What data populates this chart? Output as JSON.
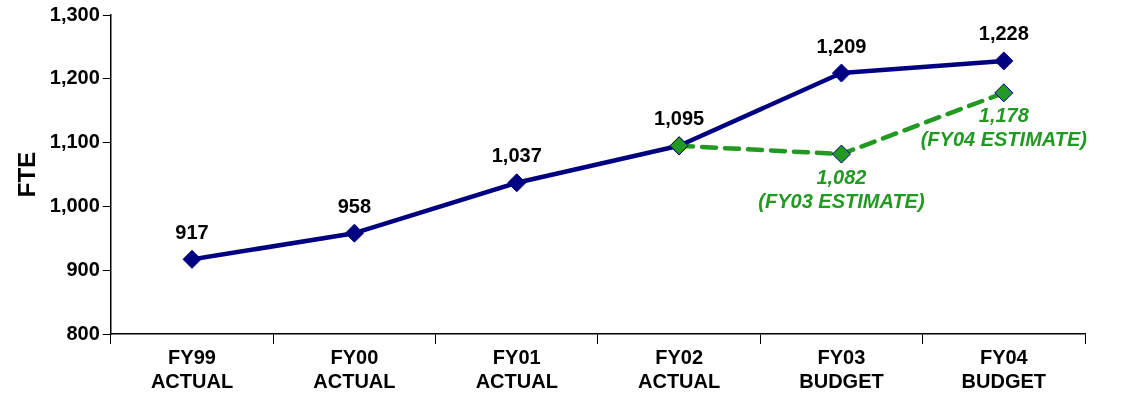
{
  "chart_data": {
    "type": "line",
    "ylabel": "FTE",
    "categories": [
      "FY99 ACTUAL",
      "FY00 ACTUAL",
      "FY01 ACTUAL",
      "FY02 ACTUAL",
      "FY03 BUDGET",
      "FY04 BUDGET"
    ],
    "series": [
      {
        "color": "#000080",
        "values": [
          917,
          958,
          1037,
          1095,
          1209,
          1228
        ],
        "value_labels": [
          "917",
          "958",
          "1,037",
          "1,095",
          "1,209",
          "1,228"
        ]
      },
      {
        "color": "#229922",
        "line_style": "dashed",
        "values": [
          null,
          null,
          null,
          1095,
          1082,
          1178
        ],
        "value_labels": [
          null,
          null,
          null,
          null,
          "1,082",
          "1,178"
        ]
      }
    ],
    "annotations": [
      {
        "text": "(FY03 ESTIMATE)",
        "x": "FY03 BUDGET",
        "y": 1082
      },
      {
        "text": "(FY04 ESTIMATE)",
        "x": "FY04 BUDGET",
        "y": 1178
      }
    ],
    "ylim": [
      800,
      1300
    ],
    "yticks": [
      800,
      900,
      {
        "value": 1000,
        "label": "1,000"
      },
      {
        "value": 1100,
        "label": "1,100"
      },
      {
        "value": 1200,
        "label": "1,200"
      },
      {
        "value": 1300,
        "label": "1,300"
      }
    ],
    "marker": "diamond",
    "grid": false,
    "legend": false
  }
}
